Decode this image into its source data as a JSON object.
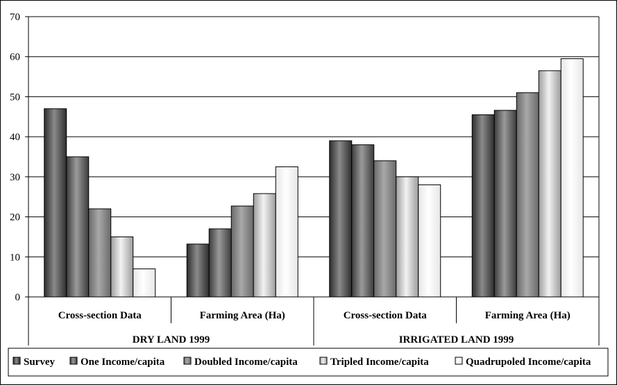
{
  "chart_data": {
    "type": "bar",
    "title": "",
    "xlabel": "",
    "ylabel": "",
    "ylim": [
      0,
      70
    ],
    "yticks": [
      0,
      10,
      20,
      30,
      40,
      50,
      60,
      70
    ],
    "grid": true,
    "legend_position": "bottom",
    "groups": [
      "DRY LAND 1999",
      "IRRIGATED LAND 1999"
    ],
    "categories": [
      "Cross-section Data",
      "Farming Area (Ha)",
      "Cross-section Data",
      "Farming Area (Ha)"
    ],
    "category_group": [
      0,
      0,
      1,
      1
    ],
    "series": [
      {
        "name": "Survey",
        "color": "#555555",
        "values": [
          47,
          13.2,
          39,
          45.5
        ]
      },
      {
        "name": "One Income/capita",
        "color": "#6f6f6f",
        "values": [
          35,
          17,
          38,
          46.6
        ]
      },
      {
        "name": "Doubled Income/capita",
        "color": "#8e8e8e",
        "values": [
          22,
          22.7,
          34,
          51
        ]
      },
      {
        "name": "Tripled Income/capita",
        "color": "#c4c4c4",
        "values": [
          15,
          25.8,
          30,
          56.5
        ]
      },
      {
        "name": "Quadrupoled Income/capita",
        "color": "#ffffff",
        "values": [
          7,
          32.5,
          28,
          59.5
        ]
      }
    ]
  }
}
